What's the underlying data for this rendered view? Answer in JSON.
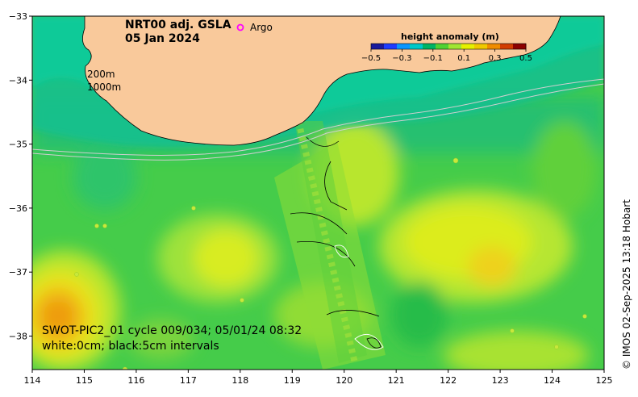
{
  "title_line1": "NRT00 adj. GSLA",
  "title_line2": "05 Jan 2024",
  "legend_argo": "Argo",
  "isobath_labels": [
    "200m",
    "1000m"
  ],
  "colorbar": {
    "title": "height anomaly (m)",
    "ticks": [
      "−0.5",
      "−0.3",
      "−0.1",
      "0.1",
      "0.3",
      "0.5"
    ],
    "colors": [
      "#1a1a9c",
      "#1e3cff",
      "#0a96ff",
      "#00c8c8",
      "#00b464",
      "#50d232",
      "#a0e632",
      "#e6f000",
      "#f0c800",
      "#f08c00",
      "#d23c00",
      "#8c0000"
    ]
  },
  "swot_line1": "SWOT-PIC2_01 cycle 009/034; 05/01/24 08:32",
  "swot_line2": "white:0cm; black:5cm intervals",
  "credit": "© IMOS 02-Sep-2025 13:18 Hobart",
  "x_ticks": [
    "114",
    "115",
    "116",
    "117",
    "118",
    "119",
    "120",
    "121",
    "122",
    "123",
    "124",
    "125"
  ],
  "y_ticks": [
    "−33",
    "−34",
    "−35",
    "−36",
    "−37",
    "−38"
  ],
  "colors": {
    "land": "#f9c99b",
    "base_green": "#3cc850",
    "coast_cyan": "#18c8a0"
  }
}
